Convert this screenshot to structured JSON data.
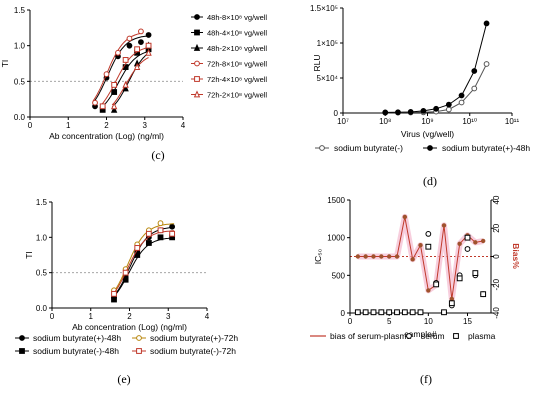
{
  "panels": {
    "c": {
      "caption": "(c)"
    },
    "d": {
      "caption": "(d)"
    },
    "e": {
      "caption": "(e)"
    },
    "f": {
      "caption": "(f)"
    }
  },
  "chart_data": [
    {
      "id": "c",
      "type": "line",
      "xlabel": "Ab concentration (Log) (ng/ml)",
      "ylabel": "TI",
      "xlim": [
        0,
        4
      ],
      "ylim": [
        0,
        1.5
      ],
      "xticks": [
        "0",
        "1",
        "2",
        "3",
        "4"
      ],
      "yticks": [
        "0.0",
        "0.5",
        "1.0",
        "1.5"
      ],
      "reference_line": 0.5,
      "legend_position": "right",
      "series": [
        {
          "name": "48h-8×10⁸ vg/well",
          "color": "#000000",
          "marker": "circle-filled",
          "x": [
            1.7,
            2.0,
            2.3,
            2.6,
            2.9,
            3.1
          ],
          "y": [
            0.15,
            0.55,
            0.85,
            1.0,
            1.05,
            1.15
          ]
        },
        {
          "name": "48h-4×10⁸  vg/well",
          "color": "#000000",
          "marker": "square-filled",
          "x": [
            1.9,
            2.2,
            2.5,
            2.8,
            3.1
          ],
          "y": [
            0.1,
            0.35,
            0.7,
            0.9,
            0.95
          ]
        },
        {
          "name": "48h-2×10⁸ vg/well",
          "color": "#000000",
          "marker": "triangle-filled",
          "x": [
            2.2,
            2.5,
            2.8,
            3.1
          ],
          "y": [
            0.1,
            0.4,
            0.75,
            1.0
          ]
        },
        {
          "name": "72h-8×10⁸ vg/well",
          "color": "#c0392b",
          "marker": "circle-open",
          "x": [
            1.7,
            2.0,
            2.3,
            2.6,
            2.9
          ],
          "y": [
            0.2,
            0.6,
            0.9,
            1.1,
            1.2
          ]
        },
        {
          "name": "72h-4×10⁸ vg/well",
          "color": "#c0392b",
          "marker": "square-open",
          "x": [
            1.9,
            2.2,
            2.5,
            2.8,
            3.1
          ],
          "y": [
            0.15,
            0.45,
            0.8,
            0.95,
            1.0
          ]
        },
        {
          "name": "72h-2×10⁸ vg/well",
          "color": "#c0392b",
          "marker": "triangle-open",
          "x": [
            2.2,
            2.5,
            2.8,
            3.1
          ],
          "y": [
            0.15,
            0.45,
            0.7,
            0.9
          ]
        }
      ]
    },
    {
      "id": "d",
      "type": "line",
      "xlabel": "Virus (vg/well)",
      "ylabel": "RLU",
      "xscale": "log",
      "xlim": [
        10000000,
        100000000000
      ],
      "ylim": [
        0,
        150000
      ],
      "xticks": [
        "10⁷",
        "10⁸",
        "10⁹",
        "10¹⁰",
        "10¹¹"
      ],
      "yticks": [
        "0",
        "5×10⁴",
        "1×10⁵",
        "1.5×10⁵"
      ],
      "legend_position": "bottom",
      "series": [
        {
          "name": "sodium butyrate(-)",
          "color": "#555555",
          "marker": "circle-open",
          "x": [
            100000000,
            200000000,
            400000000,
            800000000,
            1600000000,
            3200000000,
            6400000000,
            12800000000,
            25000000000
          ],
          "y": [
            500,
            600,
            800,
            1000,
            2000,
            5000,
            15000,
            35000,
            70000
          ]
        },
        {
          "name": "sodium butyrate(+)-48h",
          "color": "#000000",
          "marker": "circle-filled",
          "x": [
            100000000,
            200000000,
            400000000,
            800000000,
            1600000000,
            3200000000,
            6400000000,
            12800000000,
            25000000000
          ],
          "y": [
            800,
            1000,
            1500,
            3000,
            6000,
            12000,
            25000,
            60000,
            128000
          ]
        }
      ]
    },
    {
      "id": "e",
      "type": "line",
      "xlabel": "Ab concentration (Log) (ng/ml)",
      "ylabel": "TI",
      "xlim": [
        0,
        4
      ],
      "ylim": [
        0,
        1.5
      ],
      "xticks": [
        "0",
        "1",
        "2",
        "3",
        "4"
      ],
      "yticks": [
        "0.0",
        "0.5",
        "1.0",
        "1.5"
      ],
      "reference_line": 0.5,
      "legend_position": "bottom",
      "series": [
        {
          "name": "sodium butyrate(+)-48h",
          "color": "#000000",
          "marker": "circle-filled",
          "x": [
            1.6,
            1.9,
            2.2,
            2.5,
            2.8,
            3.1
          ],
          "y": [
            0.15,
            0.45,
            0.8,
            1.0,
            1.1,
            1.15
          ]
        },
        {
          "name": "sodium butyrate(-)-48h",
          "color": "#000000",
          "marker": "square-filled",
          "x": [
            1.6,
            1.9,
            2.2,
            2.5,
            2.8,
            3.1
          ],
          "y": [
            0.12,
            0.4,
            0.75,
            0.92,
            1.0,
            1.0
          ]
        },
        {
          "name": "sodium butyrate(+)-72h",
          "color": "#b8860b",
          "marker": "circle-open",
          "x": [
            1.6,
            1.9,
            2.2,
            2.5,
            2.8
          ],
          "y": [
            0.25,
            0.55,
            0.9,
            1.1,
            1.2
          ]
        },
        {
          "name": "sodium butyrate(-)-72h",
          "color": "#c0392b",
          "marker": "square-open",
          "x": [
            1.6,
            1.9,
            2.2,
            2.5,
            2.8,
            3.1
          ],
          "y": [
            0.2,
            0.5,
            0.85,
            1.05,
            1.1,
            1.05
          ]
        }
      ]
    },
    {
      "id": "f",
      "type": "line",
      "xlabel": "sample#",
      "ylabel": "IC₅₀",
      "y2label": "Bias%",
      "xlim": [
        0,
        18
      ],
      "ylim": [
        0,
        1500
      ],
      "y2lim": [
        -40,
        40
      ],
      "xticks": [
        "0",
        "5",
        "10",
        "15"
      ],
      "yticks": [
        "0",
        "500",
        "1000",
        "1500"
      ],
      "y2ticks": [
        "-40",
        "-20",
        "0",
        "20",
        "40"
      ],
      "reference_line_y2": 0,
      "legend_position": "bottom",
      "series": [
        {
          "name": "bias of serum-plasma",
          "axis": "right",
          "color": "#c0392b",
          "marker": "circle-filled",
          "x": [
            1,
            2,
            3,
            4,
            5,
            6,
            7,
            8,
            9,
            10,
            11,
            12,
            13,
            14,
            15,
            16,
            17
          ],
          "y": [
            0,
            0,
            0,
            0,
            0,
            0,
            28,
            -2,
            8,
            -24,
            -20,
            22,
            -30,
            9,
            15,
            10,
            11
          ]
        },
        {
          "name": "serum",
          "axis": "left",
          "color": "#000000",
          "marker": "circle-open",
          "x": [
            1,
            2,
            3,
            4,
            5,
            6,
            7,
            8,
            9,
            10,
            11,
            12,
            13,
            14,
            15,
            16,
            17
          ],
          "y": [
            10,
            10,
            10,
            10,
            10,
            10,
            10,
            10,
            10,
            1050,
            400,
            10,
            100,
            500,
            850,
            500,
            250
          ]
        },
        {
          "name": "plasma",
          "axis": "left",
          "color": "#000000",
          "marker": "square-open",
          "x": [
            1,
            2,
            3,
            4,
            5,
            6,
            7,
            8,
            9,
            10,
            11,
            12,
            13,
            14,
            15,
            16,
            17
          ],
          "y": [
            10,
            10,
            10,
            10,
            10,
            10,
            10,
            10,
            10,
            880,
            380,
            10,
            130,
            460,
            1000,
            530,
            250
          ]
        }
      ]
    }
  ]
}
